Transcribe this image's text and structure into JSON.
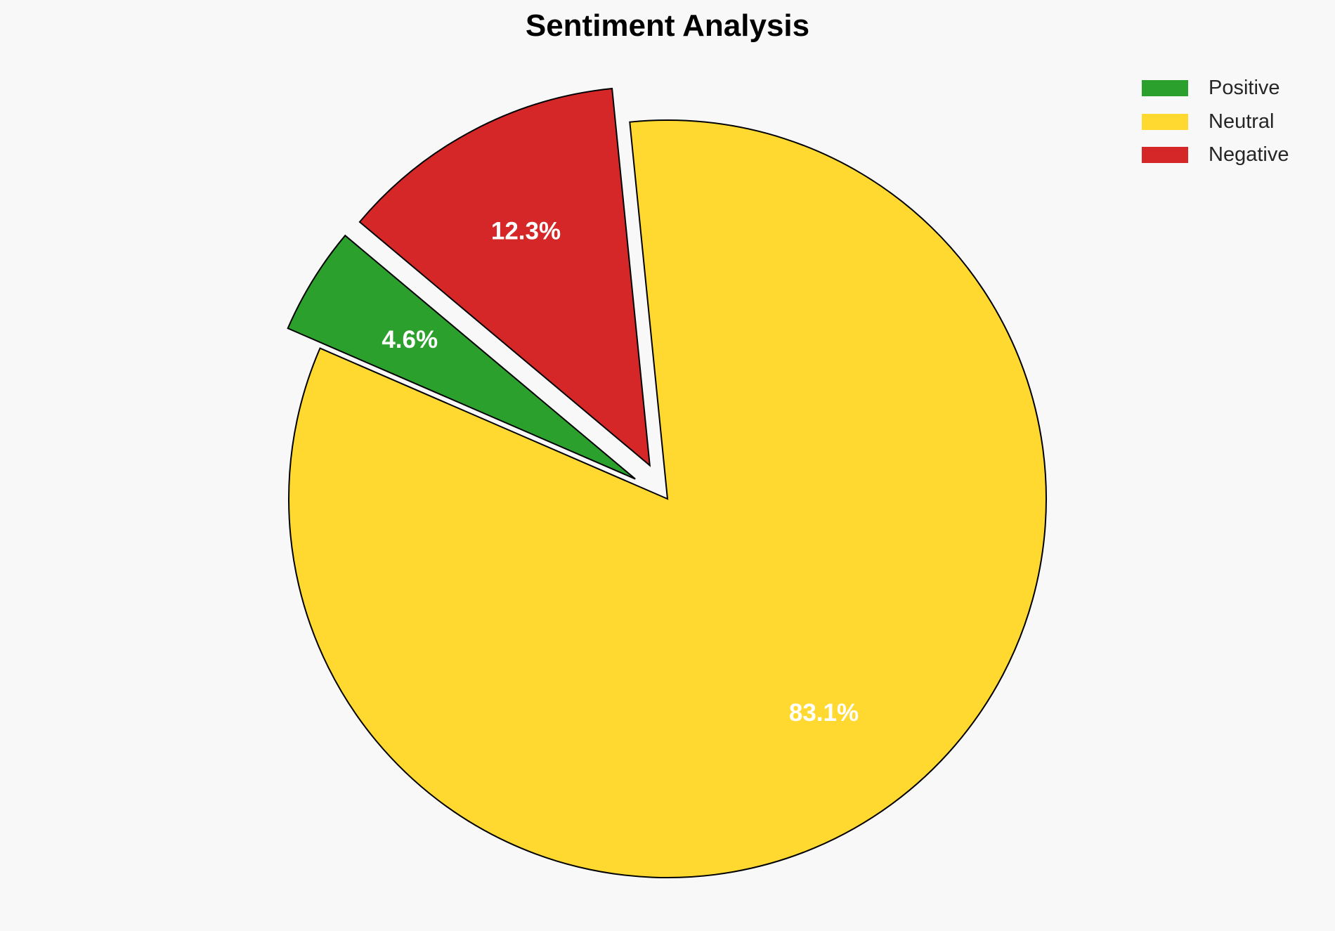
{
  "chart_data": {
    "type": "pie",
    "title": "Sentiment Analysis",
    "categories": [
      "Positive",
      "Neutral",
      "Negative"
    ],
    "values": [
      4.6,
      83.1,
      12.3
    ],
    "value_labels": [
      "4.6%",
      "83.1%",
      "12.3%"
    ],
    "colors": [
      "#2ca02c",
      "#ffd92f",
      "#d62728"
    ],
    "explode": [
      0.1,
      0,
      0.1
    ],
    "start_angle": 140,
    "edge_color": "#000000",
    "legend_position": "top-right"
  }
}
